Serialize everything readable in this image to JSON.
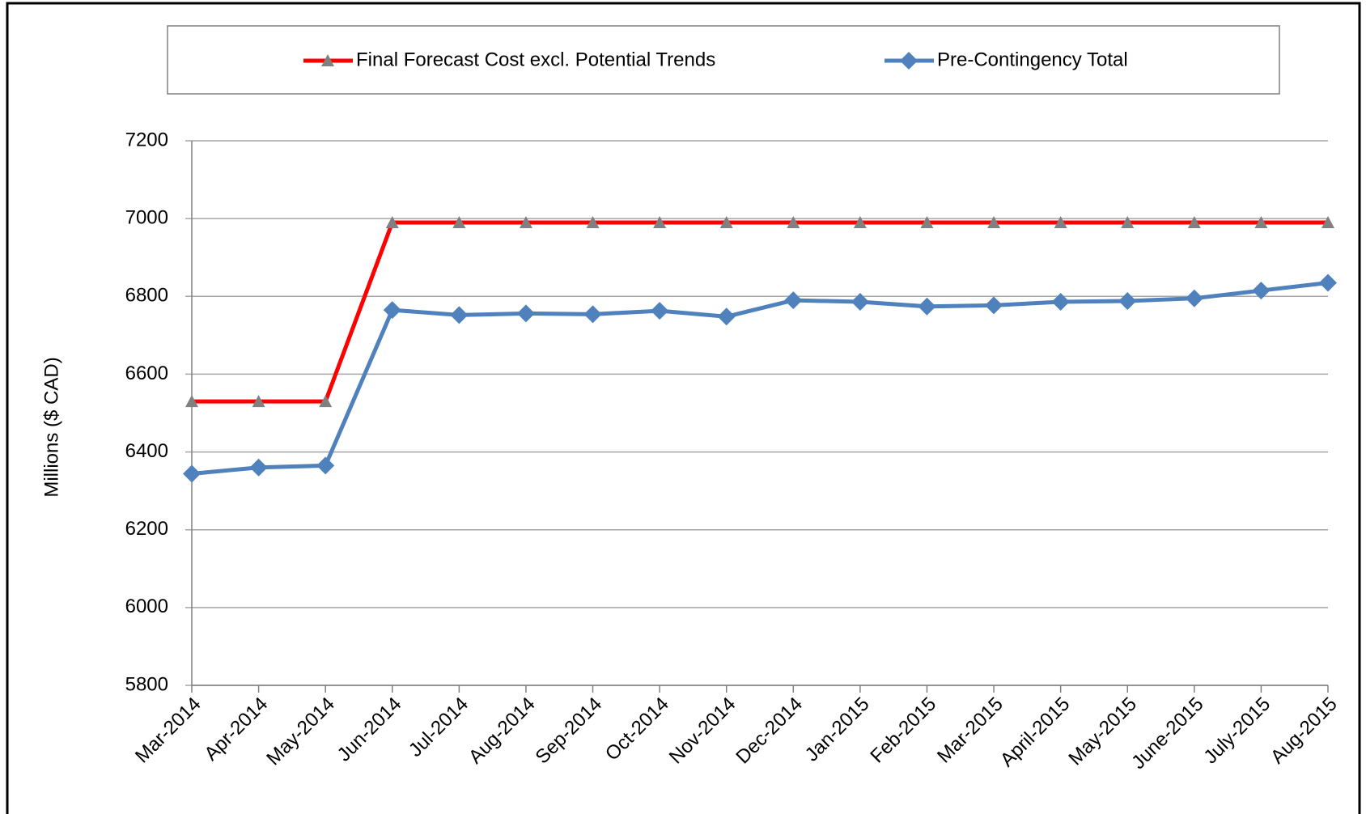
{
  "chart_data": {
    "type": "line",
    "y_label": "Millions ($ CAD)",
    "categories": [
      "Mar-2014",
      "Apr-2014",
      "May-2014",
      "Jun-2014",
      "Jul-2014",
      "Aug-2014",
      "Sep-2014",
      "Oct-2014",
      "Nov-2014",
      "Dec-2014",
      "Jan-2015",
      "Feb-2015",
      "Mar-2015",
      "April-2015",
      "May-2015",
      "June-2015",
      "July-2015",
      "Aug-2015"
    ],
    "series": [
      {
        "name": "Final Forecast Cost excl. Potential Trends",
        "color": "#ff0000",
        "marker": "triangle",
        "marker_color": "#808080",
        "values": [
          6530,
          6530,
          6530,
          6990,
          6990,
          6990,
          6990,
          6990,
          6990,
          6990,
          6990,
          6990,
          6990,
          6990,
          6990,
          6990,
          6990,
          6990
        ]
      },
      {
        "name": "Pre-Contingency Total",
        "color": "#4f81bd",
        "marker": "diamond",
        "marker_color": "#4f81bd",
        "values": [
          6344,
          6360,
          6365,
          6765,
          6752,
          6756,
          6754,
          6763,
          6748,
          6790,
          6786,
          6774,
          6777,
          6786,
          6788,
          6795,
          6815,
          6835
        ]
      }
    ],
    "ylim": [
      5800,
      7200
    ],
    "yticks": [
      5800,
      6000,
      6200,
      6400,
      6600,
      6800,
      7000,
      7200
    ],
    "grid": true,
    "legend": "top"
  }
}
